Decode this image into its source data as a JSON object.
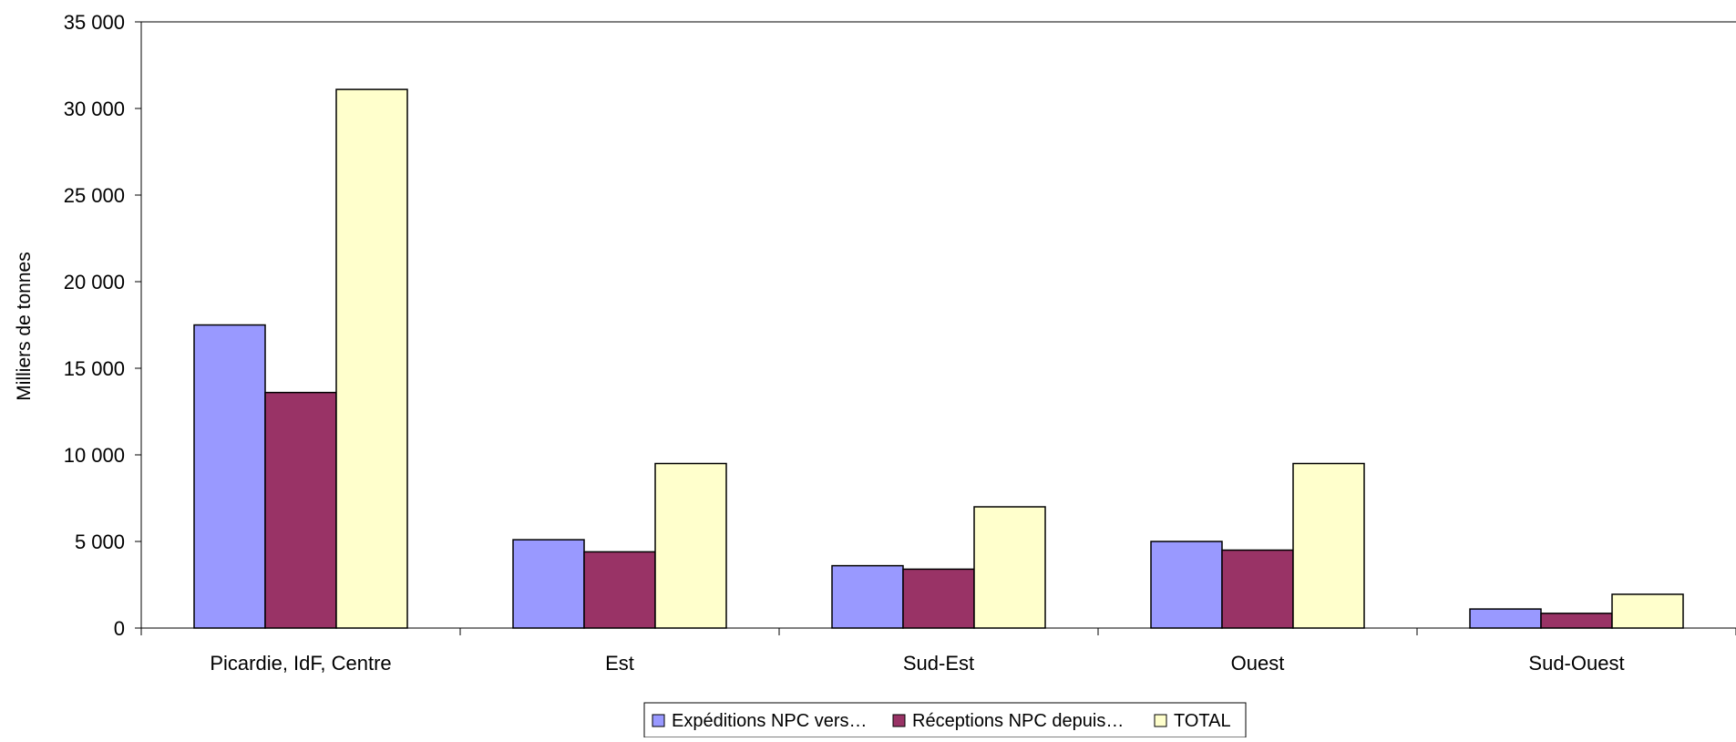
{
  "chart_data": {
    "type": "bar",
    "ylabel": "Milliers de tonnes",
    "xlabel": "",
    "ylim": [
      0,
      35000
    ],
    "ytick_values": [
      0,
      5000,
      10000,
      15000,
      20000,
      25000,
      30000,
      35000
    ],
    "ytick_labels": [
      "0",
      "5 000",
      "10 000",
      "15 000",
      "20 000",
      "25 000",
      "30 000",
      "35 000"
    ],
    "categories": [
      "Picardie, IdF, Centre",
      "Est",
      "Sud-Est",
      "Ouest",
      "Sud-Ouest"
    ],
    "series": [
      {
        "name": "Expéditions NPC vers…",
        "color": "#9999ff",
        "values": [
          17500,
          5100,
          3600,
          5000,
          1100
        ]
      },
      {
        "name": "Réceptions NPC depuis…",
        "color": "#993366",
        "values": [
          13600,
          4400,
          3400,
          4500,
          850
        ]
      },
      {
        "name": "TOTAL",
        "color": "#ffffcc",
        "values": [
          31100,
          9500,
          7000,
          9500,
          1950
        ]
      }
    ],
    "grid": false,
    "legend_position": "bottom"
  }
}
